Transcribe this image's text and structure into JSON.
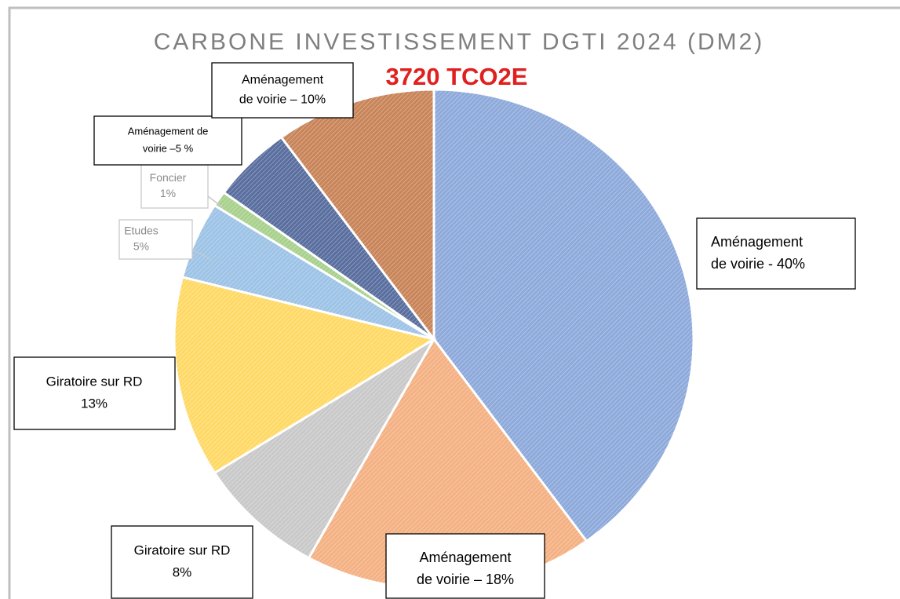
{
  "chart_data": {
    "type": "pie",
    "title": "CARBONE INVESTISSEMENT DGTI 2024 (DM2)",
    "subtitle": "3720 TCO2E",
    "values": [
      40,
      18,
      8,
      13,
      5,
      1,
      5,
      10
    ],
    "labels": [
      [
        "Aménagement",
        "de voirie -  40%"
      ],
      [
        "Aménagement",
        "de voirie – 18%"
      ],
      [
        "Giratoire sur RD",
        "8%"
      ],
      [
        "Giratoire sur RD",
        "13%"
      ],
      [
        "Etudes",
        "5%"
      ],
      [
        "Foncier",
        "1%"
      ],
      [
        "Aménagement de",
        "voirie –5 %"
      ],
      [
        "Aménagement",
        "de voirie – 10%"
      ]
    ],
    "colors": [
      "#8eaadb",
      "#f4b183",
      "#c9c9c9",
      "#ffd966",
      "#9dc3e6",
      "#a9d18e",
      "#5a6f9f",
      "#c9855a"
    ],
    "hatched": true
  }
}
